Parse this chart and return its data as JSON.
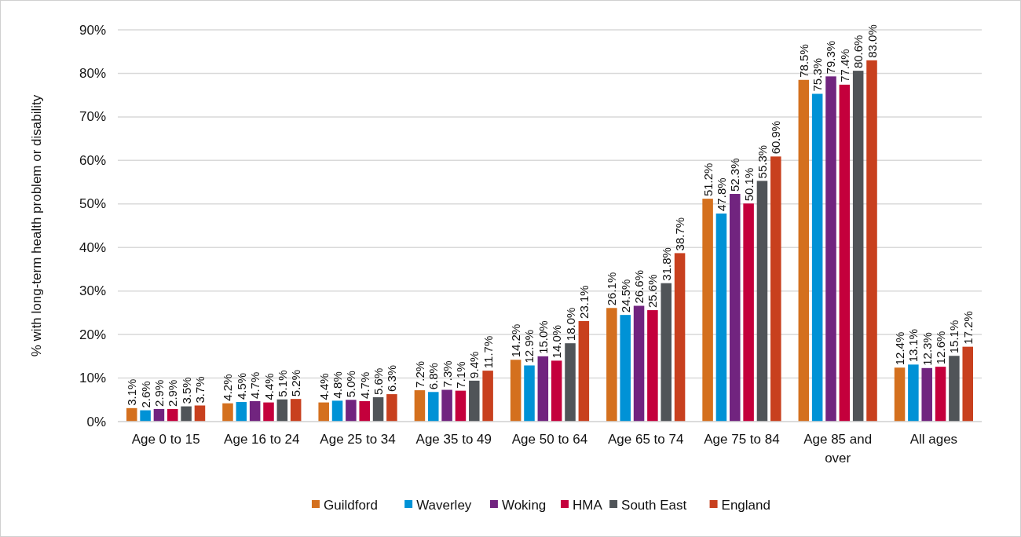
{
  "chart_data": {
    "type": "bar",
    "ylabel": "% with long-term health problem or disability",
    "categories": [
      "Age 0 to 15",
      "Age 16 to 24",
      "Age 25 to 34",
      "Age 35 to 49",
      "Age 50 to 64",
      "Age 65 to 74",
      "Age 75 to 84",
      "Age 85 and over",
      "All ages"
    ],
    "series": [
      {
        "name": "Guildford",
        "color": "#d4701e",
        "values": [
          3.1,
          4.2,
          4.4,
          7.2,
          14.2,
          26.1,
          51.2,
          78.5,
          12.4
        ],
        "value_labels": [
          "3.1%",
          "4.2%",
          "4.4%",
          "7.2%",
          "14.2%",
          "26.1%",
          "51.2%",
          "78.5%",
          "12.4%"
        ]
      },
      {
        "name": "Waverley",
        "color": "#0092d6",
        "values": [
          2.6,
          4.5,
          4.8,
          6.8,
          12.9,
          24.5,
          47.8,
          75.3,
          13.1
        ],
        "value_labels": [
          "2.6%",
          "4.5%",
          "4.8%",
          "6.8%",
          "12.9%",
          "24.5%",
          "47.8%",
          "75.3%",
          "13.1%"
        ]
      },
      {
        "name": "Woking",
        "color": "#71247f",
        "values": [
          2.9,
          4.7,
          5.0,
          7.3,
          15.0,
          26.6,
          52.3,
          79.3,
          12.3
        ],
        "value_labels": [
          "2.9%",
          "4.7%",
          "5.0%",
          "7.3%",
          "15.0%",
          "26.6%",
          "52.3%",
          "79.3%",
          "12.3%"
        ]
      },
      {
        "name": "HMA",
        "color": "#c4003c",
        "values": [
          2.9,
          4.4,
          4.7,
          7.1,
          14.0,
          25.6,
          50.1,
          77.4,
          12.6
        ],
        "value_labels": [
          "2.9%",
          "4.4%",
          "4.7%",
          "7.1%",
          "14.0%",
          "25.6%",
          "50.1%",
          "77.4%",
          "12.6%"
        ]
      },
      {
        "name": "South East",
        "color": "#505458",
        "values": [
          3.5,
          5.1,
          5.6,
          9.4,
          18.0,
          31.8,
          55.3,
          80.6,
          15.1
        ],
        "value_labels": [
          "3.5%",
          "5.1%",
          "5.6%",
          "9.4%",
          "18.0%",
          "31.8%",
          "55.3%",
          "80.6%",
          "15.1%"
        ]
      },
      {
        "name": "England",
        "color": "#c8401e",
        "values": [
          3.7,
          5.2,
          6.3,
          11.7,
          23.1,
          38.7,
          60.9,
          83.0,
          17.2
        ],
        "value_labels": [
          "3.7%",
          "5.2%",
          "6.3%",
          "11.7%",
          "23.1%",
          "38.7%",
          "60.9%",
          "83.0%",
          "17.2%"
        ]
      }
    ],
    "ylim": [
      0,
      90
    ],
    "yticks": [
      {
        "value": 0,
        "label": "0%"
      },
      {
        "value": 10,
        "label": "10%"
      },
      {
        "value": 20,
        "label": "20%"
      },
      {
        "value": 30,
        "label": "30%"
      },
      {
        "value": 40,
        "label": "40%"
      },
      {
        "value": 50,
        "label": "50%"
      },
      {
        "value": 60,
        "label": "60%"
      },
      {
        "value": 70,
        "label": "70%"
      },
      {
        "value": 80,
        "label": "80%"
      },
      {
        "value": 90,
        "label": "90%"
      }
    ],
    "grid": "y",
    "legend": "bottom"
  }
}
